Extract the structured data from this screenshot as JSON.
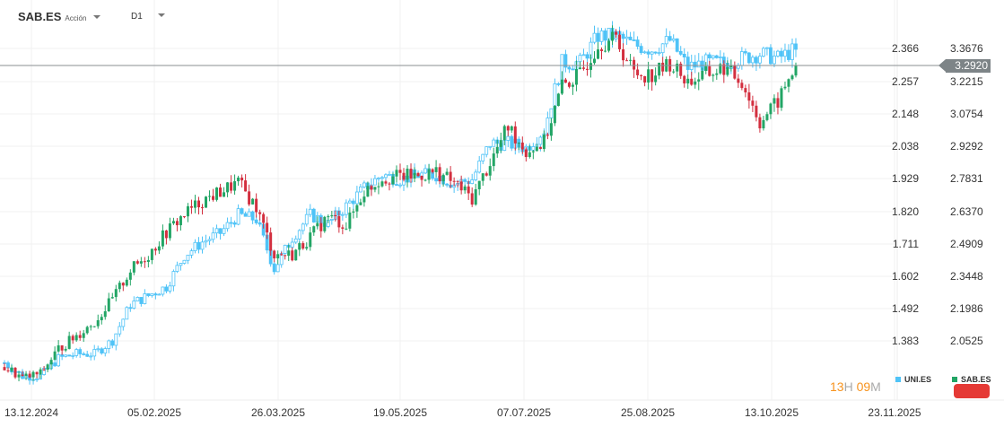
{
  "header": {
    "symbol": "SAB.ES",
    "type": "Acción",
    "timeframe": "D1"
  },
  "timer": {
    "hours": "13",
    "hours_unit": "H",
    "minutes": "09",
    "minutes_unit": "M"
  },
  "legend": [
    {
      "name": "UNI.ES",
      "color": "#4fc3f7"
    },
    {
      "name": "SAB.ES",
      "color": "#22a565"
    }
  ],
  "current_price": "3.2920",
  "colors": {
    "up": "#22a565",
    "down": "#d32f3f",
    "compare": "#4fc3f7",
    "badge": "#e53935"
  },
  "chart_data": {
    "type": "candlestick",
    "x_tick_labels": [
      "13.12.2024",
      "05.02.2025",
      "26.03.2025",
      "19.05.2025",
      "07.07.2025",
      "25.08.2025",
      "13.10.2025",
      "23.11.2025"
    ],
    "left_axis": {
      "series": "UNI.ES",
      "tick_labels": [
        "2.366",
        "2.257",
        "2.148",
        "2.038",
        "1.929",
        "1.820",
        "1.711",
        "1.602",
        "1.492",
        "1.383"
      ]
    },
    "right_axis": {
      "series": "SAB.ES",
      "tick_labels": [
        "3.3676",
        "3.2215",
        "3.0754",
        "2.9292",
        "2.7831",
        "2.6370",
        "2.4909",
        "2.3448",
        "2.1986",
        "2.0525"
      ]
    },
    "grid": true,
    "series": [
      {
        "name": "SAB.ES",
        "axis": "right",
        "weekly_close": [
          1.95,
          1.9,
          1.92,
          2.03,
          2.09,
          2.15,
          2.25,
          2.38,
          2.45,
          2.55,
          2.63,
          2.69,
          2.73,
          2.77,
          2.66,
          2.45,
          2.45,
          2.53,
          2.62,
          2.58,
          2.73,
          2.79,
          2.8,
          2.8,
          2.82,
          2.77,
          2.7,
          2.86,
          3.02,
          2.91,
          2.95,
          3.2,
          3.25,
          3.39,
          3.41,
          3.26,
          3.25,
          3.3,
          3.22,
          3.25,
          3.28,
          3.22,
          3.04,
          3.13,
          3.292
        ]
      },
      {
        "name": "UNI.ES",
        "axis": "left",
        "weekly_close": [
          1.309,
          1.264,
          1.264,
          1.324,
          1.339,
          1.339,
          1.384,
          1.505,
          1.535,
          1.565,
          1.67,
          1.715,
          1.746,
          1.806,
          1.791,
          1.625,
          1.73,
          1.806,
          1.776,
          1.836,
          1.896,
          1.941,
          1.926,
          1.941,
          1.941,
          1.911,
          1.926,
          2.047,
          2.047,
          2.032,
          2.092,
          2.318,
          2.318,
          2.408,
          2.408,
          2.378,
          2.363,
          2.393,
          2.303,
          2.318,
          2.318,
          2.333,
          2.348,
          2.333,
          2.363
        ]
      }
    ]
  }
}
